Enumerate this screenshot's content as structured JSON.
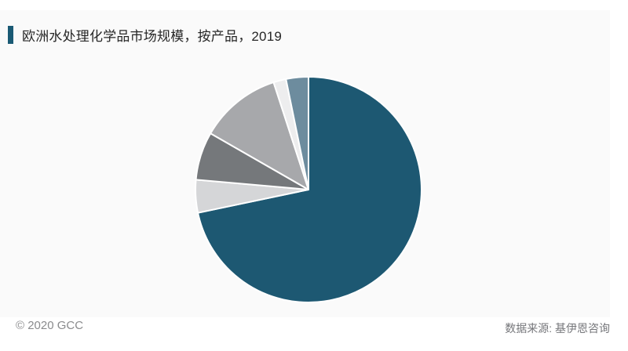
{
  "header": {
    "title": "欧洲水处理化学品市场规模，按产品，2019",
    "accent_color": "#1a5a74"
  },
  "footer": {
    "copyright": "© 2020 GCC",
    "source": "数据来源: 基伊恩咨询"
  },
  "chart_data": {
    "type": "pie",
    "title": "欧洲水处理化学品市场规模，按产品，2019",
    "year": "2019",
    "unit": "percent_share",
    "legend": "none",
    "data_labels": "none",
    "start_angle_deg": 0,
    "direction": "clockwise",
    "slice_separator_color": "#ffffff",
    "slices": [
      {
        "value": 71.7,
        "color": "#1d5872"
      },
      {
        "value": 4.7,
        "color": "#d5d6d8"
      },
      {
        "value": 6.9,
        "color": "#75787b"
      },
      {
        "value": 11.7,
        "color": "#a7a8ab"
      },
      {
        "value": 1.8,
        "color": "#ededee"
      },
      {
        "value": 3.2,
        "color": "#6d8c9e"
      }
    ]
  }
}
